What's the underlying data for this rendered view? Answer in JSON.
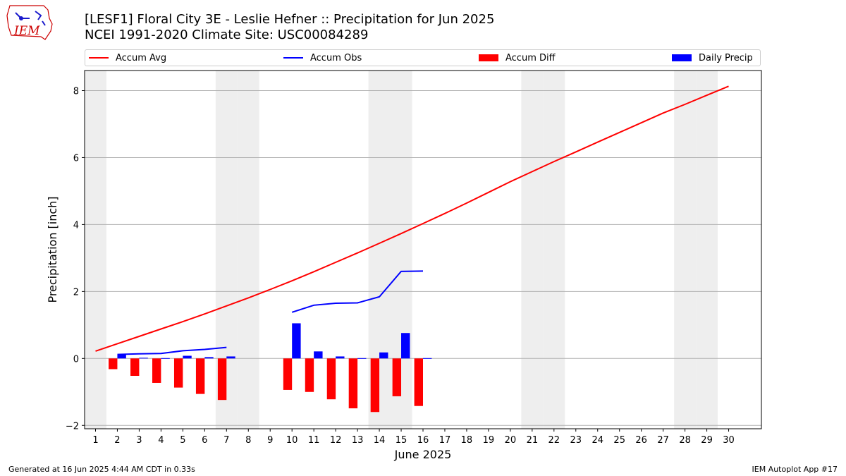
{
  "title_line1": "[LESF1] Floral City 3E - Leslie Hefner :: Precipitation for Jun 2025",
  "title_line2": "NCEI 1991-2020 Climate Site: USC00084289",
  "logo_text": "IEM",
  "footer_left": "Generated at 16 Jun 2025 4:44 AM CDT in 0.33s",
  "footer_right": "IEM Autoplot App #17",
  "colors": {
    "avg": "#ff0000",
    "obs": "#0000ff",
    "diff": "#ff0000",
    "daily": "#0000ff",
    "weekend": "#eeeeee",
    "grid": "#b0b0b0"
  },
  "chart_data": {
    "type": "bar",
    "xlabel": "June 2025",
    "ylabel": "Precipitation [inch]",
    "xlim": [
      0.5,
      31.5
    ],
    "ylim": [
      -2.1,
      8.6
    ],
    "yticks": [
      -2,
      0,
      2,
      4,
      6,
      8
    ],
    "xticks": [
      1,
      2,
      3,
      4,
      5,
      6,
      7,
      8,
      9,
      10,
      11,
      12,
      13,
      14,
      15,
      16,
      17,
      18,
      19,
      20,
      21,
      22,
      23,
      24,
      25,
      26,
      27,
      28,
      29,
      30
    ],
    "grid": "horizontal",
    "legend_position": "top, outside plot",
    "weekend_days": [
      1,
      7,
      8,
      14,
      15,
      21,
      22,
      28,
      29
    ],
    "series": [
      {
        "name": "Accum Avg",
        "kind": "line",
        "x": [
          1,
          2,
          3,
          4,
          5,
          6,
          7,
          8,
          9,
          10,
          11,
          12,
          13,
          14,
          15,
          16,
          17,
          18,
          19,
          20,
          21,
          22,
          23,
          24,
          25,
          26,
          27,
          28,
          29,
          30
        ],
        "values": [
          0.22,
          0.44,
          0.66,
          0.88,
          1.1,
          1.33,
          1.57,
          1.81,
          2.06,
          2.32,
          2.59,
          2.87,
          3.15,
          3.44,
          3.73,
          4.03,
          4.33,
          4.64,
          4.96,
          5.28,
          5.58,
          5.88,
          6.17,
          6.46,
          6.75,
          7.04,
          7.33,
          7.59,
          7.86,
          8.13
        ]
      },
      {
        "name": "Accum Obs",
        "kind": "line",
        "x": [
          2,
          3,
          4,
          5,
          6,
          7,
          10,
          11,
          12,
          13,
          14,
          15,
          16
        ],
        "values": [
          0.12,
          0.14,
          0.15,
          0.23,
          0.27,
          0.33,
          1.38,
          1.59,
          1.65,
          1.66,
          1.84,
          2.6,
          2.61
        ]
      },
      {
        "name": "Accum Diff",
        "kind": "bar",
        "x": [
          2,
          3,
          4,
          5,
          6,
          7,
          10,
          11,
          12,
          13,
          14,
          15,
          16
        ],
        "values": [
          -0.32,
          -0.52,
          -0.73,
          -0.87,
          -1.06,
          -1.24,
          -0.94,
          -1.0,
          -1.22,
          -1.49,
          -1.6,
          -1.13,
          -1.42
        ]
      },
      {
        "name": "Daily Precip",
        "kind": "bar",
        "x": [
          2,
          3,
          4,
          5,
          6,
          7,
          10,
          11,
          12,
          13,
          14,
          15,
          16
        ],
        "values": [
          0.12,
          0.02,
          0.01,
          0.08,
          0.04,
          0.06,
          1.05,
          0.21,
          0.06,
          0.01,
          0.18,
          0.76,
          0.01
        ]
      }
    ]
  }
}
